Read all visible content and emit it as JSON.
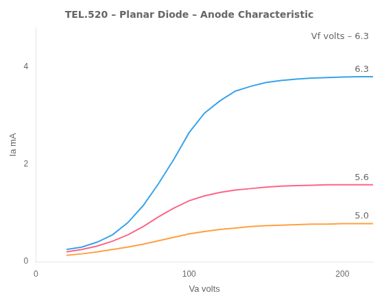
{
  "chart_data": {
    "type": "line",
    "title": "TEL.520 – Planar Diode – Anode Characteristic",
    "x_label": "Va volts",
    "y_label": "Ia mA",
    "annotations": [
      "Vf volts – 6.3"
    ],
    "x": [
      20,
      30,
      40,
      50,
      60,
      70,
      80,
      90,
      100,
      110,
      120,
      130,
      140,
      150,
      160,
      170,
      180,
      190,
      200,
      210,
      220
    ],
    "series": [
      {
        "name": "6.3",
        "values": [
          0.25,
          0.3,
          0.4,
          0.55,
          0.8,
          1.15,
          1.6,
          2.1,
          2.65,
          3.05,
          3.3,
          3.5,
          3.6,
          3.68,
          3.72,
          3.75,
          3.77,
          3.78,
          3.79,
          3.8,
          3.8
        ]
      },
      {
        "name": "5.6",
        "values": [
          0.2,
          0.25,
          0.32,
          0.42,
          0.55,
          0.72,
          0.92,
          1.1,
          1.25,
          1.35,
          1.42,
          1.47,
          1.5,
          1.53,
          1.55,
          1.56,
          1.57,
          1.58,
          1.58,
          1.58,
          1.58
        ]
      },
      {
        "name": "5.0",
        "values": [
          0.13,
          0.16,
          0.2,
          0.25,
          0.3,
          0.36,
          0.43,
          0.5,
          0.57,
          0.62,
          0.66,
          0.69,
          0.72,
          0.74,
          0.75,
          0.76,
          0.77,
          0.77,
          0.78,
          0.78,
          0.78
        ]
      }
    ],
    "xlim": [
      0,
      220
    ],
    "ylim": [
      0,
      4.8
    ],
    "xticks": [
      0,
      100,
      200
    ],
    "yticks": [
      0,
      2,
      4
    ],
    "grid": false
  }
}
